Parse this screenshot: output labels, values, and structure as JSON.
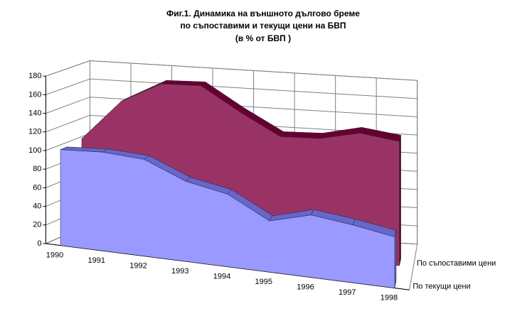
{
  "chart_data": {
    "type": "area3d",
    "title": "Фиг.1. Динамика на външното дългово бреме",
    "subtitle": "по съпоставими и текущи цени на БВП",
    "note": "(в % от БВП )",
    "categories": [
      "1990",
      "1991",
      "1992",
      "1993",
      "1994",
      "1995",
      "1996",
      "1997",
      "1998"
    ],
    "series": [
      {
        "name": "По съпоставими цени",
        "color": "#993366",
        "top_color": "#660033",
        "values": [
          105,
          150,
          173,
          175,
          150,
          128,
          130,
          140,
          135
        ]
      },
      {
        "name": "По текущи цени",
        "color": "#9999ff",
        "top_color": "#6666cc",
        "values": [
          103,
          106,
          104,
          86,
          78,
          55,
          67,
          62,
          55
        ]
      }
    ],
    "ylim": [
      0,
      180
    ],
    "yticks": [
      0,
      20,
      40,
      60,
      80,
      100,
      120,
      140,
      160,
      180
    ],
    "grid": true
  }
}
